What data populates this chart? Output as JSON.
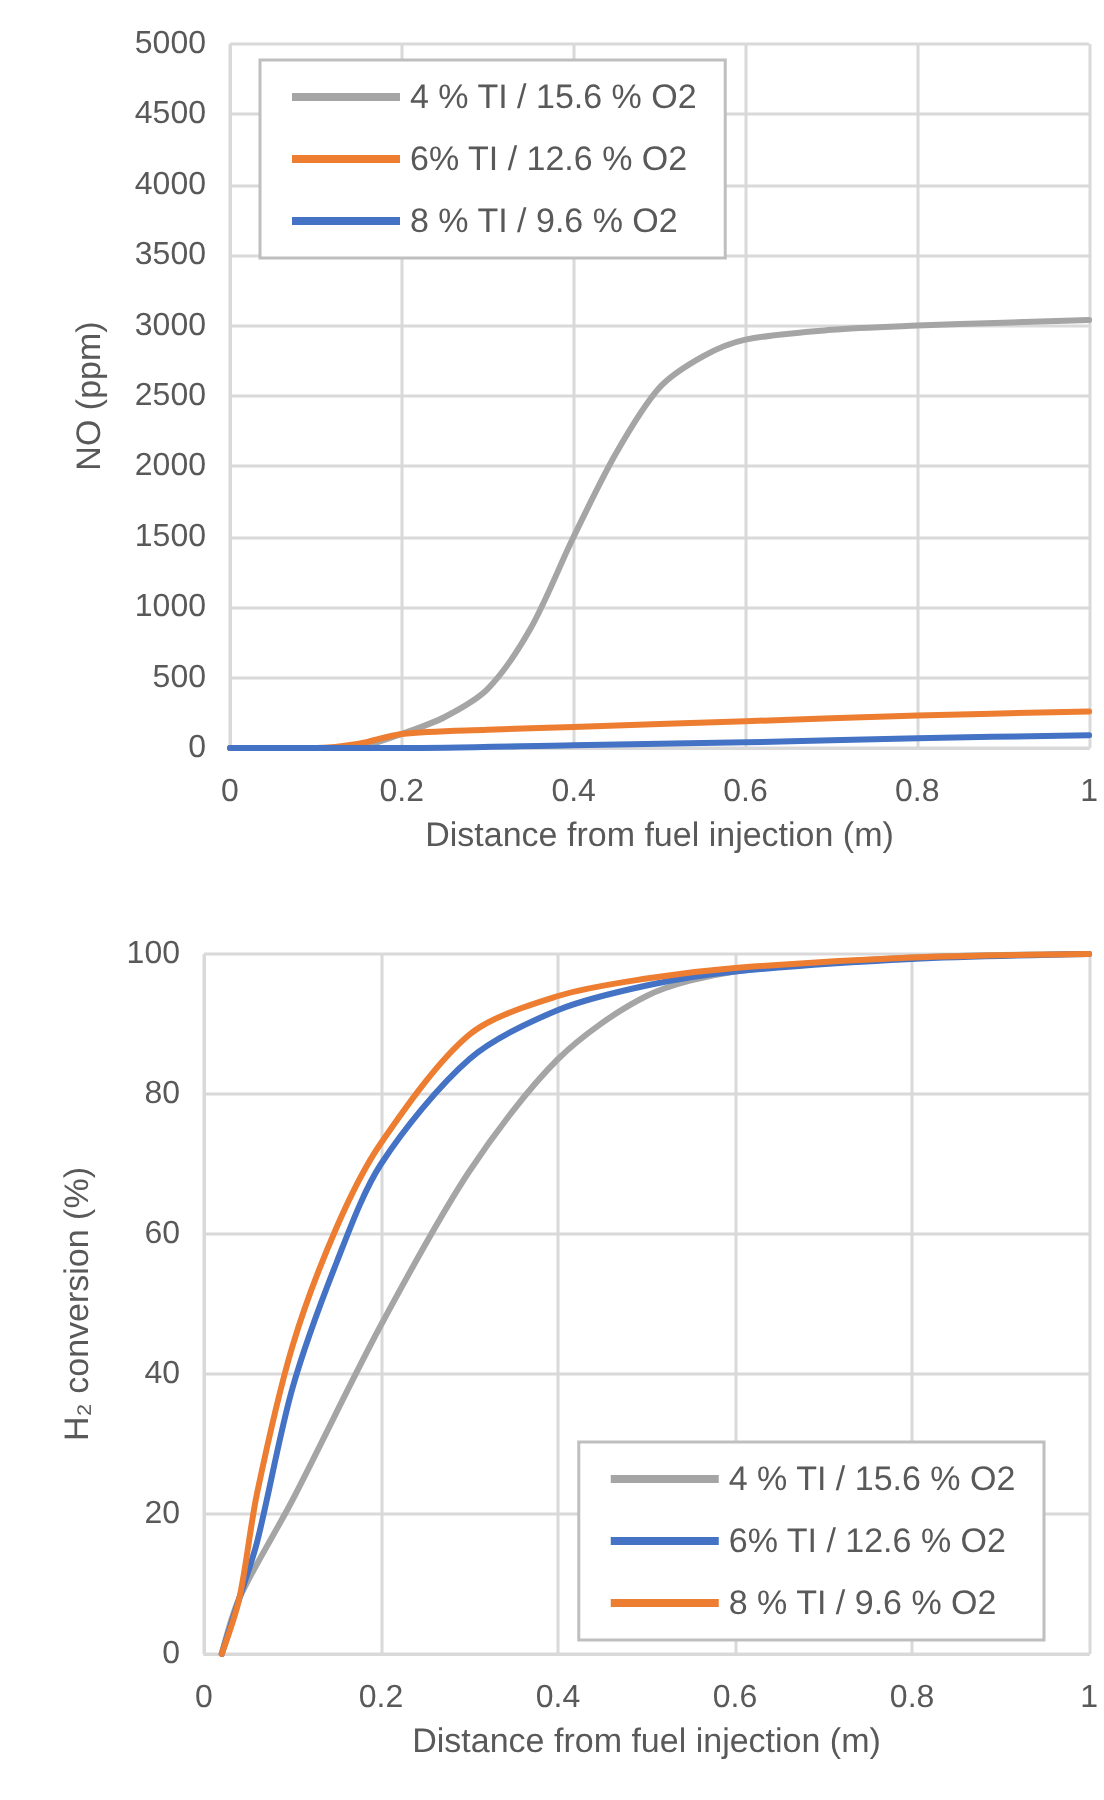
{
  "chart_data": [
    {
      "type": "line",
      "xlabel": "Distance from fuel injection (m)",
      "ylabel": "NO (ppm)",
      "xlim": [
        0,
        1
      ],
      "xticks": [
        0,
        0.2,
        0.4,
        0.6,
        0.8,
        1
      ],
      "ylim": [
        0,
        5000
      ],
      "yticks": [
        0,
        500,
        1000,
        1500,
        2000,
        2500,
        3000,
        3500,
        4000,
        4500,
        5000
      ],
      "grid": true,
      "legend": "top left",
      "marker": "none",
      "line_style": "solid",
      "series": [
        {
          "name": "4 % TI / 15.6 % O2",
          "color": "#a5a5a5",
          "x": [
            0,
            0.1,
            0.15,
            0.2,
            0.25,
            0.3,
            0.35,
            0.4,
            0.45,
            0.5,
            0.55,
            0.6,
            0.7,
            0.8,
            0.9,
            1
          ],
          "values": [
            0,
            0,
            10,
            100,
            220,
            420,
            850,
            1500,
            2100,
            2560,
            2780,
            2900,
            2970,
            3000,
            3020,
            3040
          ]
        },
        {
          "name": "6% TI / 12.6 % O2",
          "color": "#ed7d31",
          "x": [
            0,
            0.1,
            0.15,
            0.2,
            0.3,
            0.4,
            0.6,
            0.8,
            1
          ],
          "values": [
            0,
            0,
            30,
            100,
            130,
            150,
            190,
            230,
            260
          ]
        },
        {
          "name": "8 % TI / 9.6 % O2",
          "color": "#4472c4",
          "x": [
            0,
            0.2,
            0.4,
            0.6,
            0.8,
            1
          ],
          "values": [
            0,
            0,
            20,
            40,
            70,
            90
          ]
        }
      ]
    },
    {
      "type": "line",
      "xlabel": "Distance from fuel injection (m)",
      "ylabel": "H₂ conversion (%)",
      "xlim": [
        0,
        1
      ],
      "xticks": [
        0,
        0.2,
        0.4,
        0.6,
        0.8,
        1
      ],
      "ylim": [
        0,
        100
      ],
      "yticks": [
        0,
        20,
        40,
        60,
        80,
        100
      ],
      "grid": true,
      "legend": "bottom right",
      "marker": "none",
      "line_style": "solid",
      "series": [
        {
          "name": "4 % TI / 15.6 % O2",
          "color": "#a5a5a5",
          "x": [
            0.02,
            0.04,
            0.1,
            0.2,
            0.3,
            0.4,
            0.5,
            0.6,
            0.8,
            1
          ],
          "values": [
            0,
            8,
            22,
            47,
            69,
            85,
            94,
            97.5,
            99.5,
            100
          ]
        },
        {
          "name": "6% TI / 12.6 % O2",
          "color": "#4472c4",
          "x": [
            0.02,
            0.04,
            0.06,
            0.1,
            0.15,
            0.2,
            0.3,
            0.4,
            0.5,
            0.6,
            0.8,
            1
          ],
          "values": [
            0,
            8,
            16,
            38,
            56,
            70,
            85,
            92,
            95.5,
            97.5,
            99.3,
            100
          ]
        },
        {
          "name": "8 % TI / 9.6 % O2",
          "color": "#ed7d31",
          "x": [
            0.02,
            0.04,
            0.06,
            0.1,
            0.15,
            0.2,
            0.3,
            0.4,
            0.5,
            0.6,
            0.8,
            1
          ],
          "values": [
            0,
            8,
            23,
            44,
            61,
            73,
            88.5,
            94,
            96.5,
            98,
            99.5,
            100
          ]
        }
      ]
    }
  ]
}
